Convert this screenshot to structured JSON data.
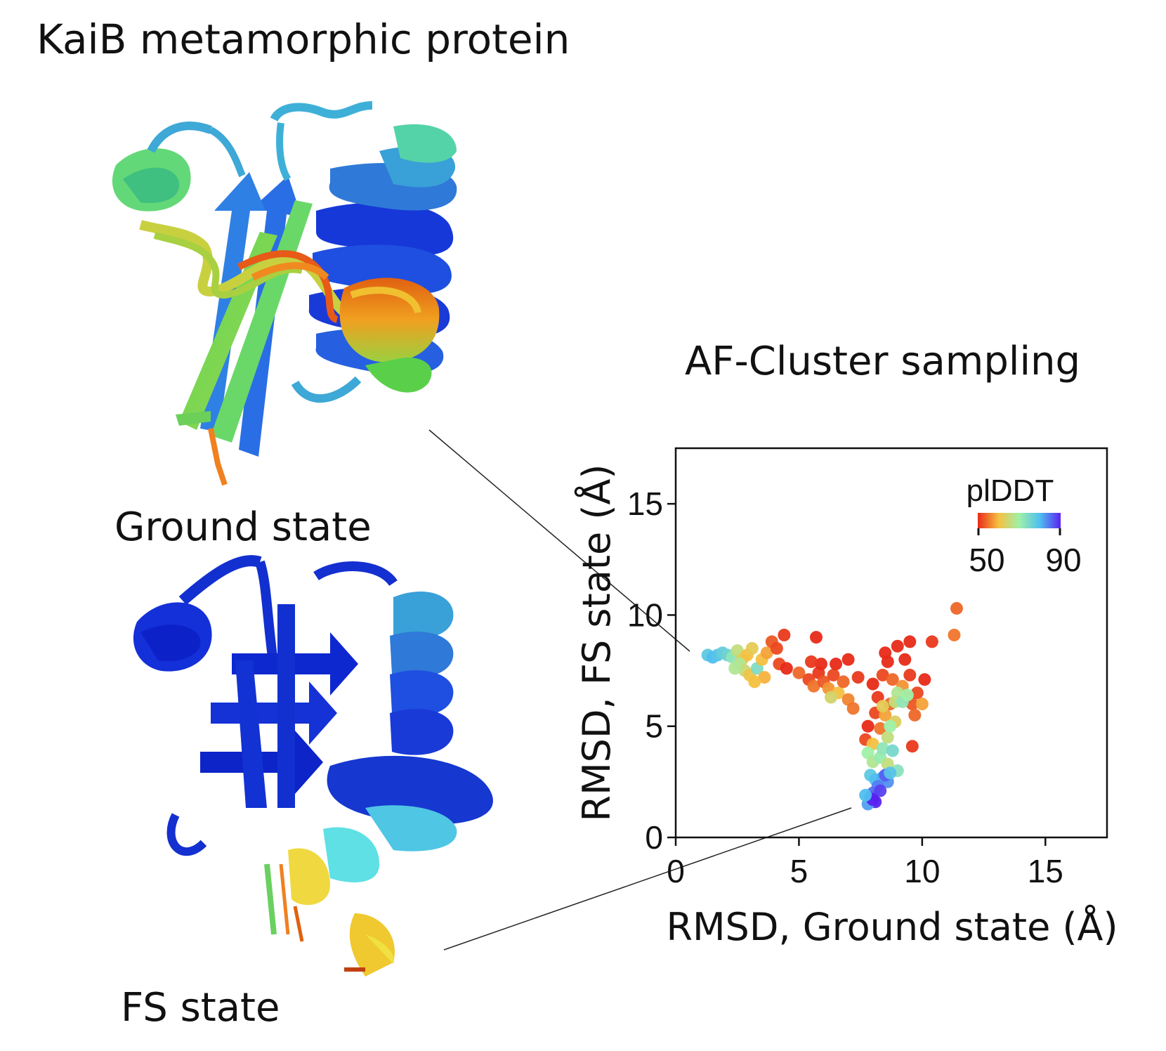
{
  "figure": {
    "title": "KaiB metamorphic protein",
    "structures": [
      {
        "label": "Ground state",
        "icon": "protein-cartoon-ground-state"
      },
      {
        "label": "FS state",
        "icon": "protein-cartoon-fs-state"
      }
    ]
  },
  "colors": {
    "blue": "#1030d8",
    "azure": "#2f6fe0",
    "cyan": "#49c6e8",
    "green": "#5ed45a",
    "yellow": "#f0d040",
    "orange": "#f08020",
    "red": "#e03018"
  },
  "chart_data": {
    "type": "scatter",
    "title": "AF-Cluster sampling",
    "xlabel": "RMSD, Ground state (Å)",
    "ylabel": "RMSD, FS state (Å)",
    "xlim": [
      0,
      17.5
    ],
    "ylim": [
      0,
      17.5
    ],
    "xticks": [
      0,
      5,
      10,
      15
    ],
    "yticks": [
      0,
      5,
      10,
      15
    ],
    "grid": false,
    "colorbar": {
      "title": "plDDT",
      "min": 50,
      "max": 90,
      "colormap": "rainbow (red to violet)",
      "placement": "top-right"
    },
    "points": [
      {
        "x": 1.3,
        "y": 8.2,
        "c": 78
      },
      {
        "x": 1.5,
        "y": 8.1,
        "c": 80
      },
      {
        "x": 1.7,
        "y": 8.2,
        "c": 79
      },
      {
        "x": 1.9,
        "y": 8.3,
        "c": 77
      },
      {
        "x": 2.1,
        "y": 8.2,
        "c": 76
      },
      {
        "x": 2.3,
        "y": 8.1,
        "c": 72
      },
      {
        "x": 2.5,
        "y": 8.4,
        "c": 66
      },
      {
        "x": 2.7,
        "y": 8.0,
        "c": 63
      },
      {
        "x": 2.9,
        "y": 8.2,
        "c": 60
      },
      {
        "x": 3.1,
        "y": 8.5,
        "c": 62
      },
      {
        "x": 2.6,
        "y": 7.8,
        "c": 68
      },
      {
        "x": 2.8,
        "y": 7.5,
        "c": 65
      },
      {
        "x": 3.0,
        "y": 7.3,
        "c": 61
      },
      {
        "x": 3.3,
        "y": 7.6,
        "c": 74
      },
      {
        "x": 3.5,
        "y": 8.0,
        "c": 60
      },
      {
        "x": 3.7,
        "y": 8.3,
        "c": 58
      },
      {
        "x": 3.9,
        "y": 8.8,
        "c": 53
      },
      {
        "x": 3.6,
        "y": 7.2,
        "c": 59
      },
      {
        "x": 3.2,
        "y": 7.0,
        "c": 60
      },
      {
        "x": 2.4,
        "y": 7.6,
        "c": 68
      },
      {
        "x": 4.2,
        "y": 7.8,
        "c": 52
      },
      {
        "x": 4.5,
        "y": 7.6,
        "c": 50
      },
      {
        "x": 4.1,
        "y": 8.5,
        "c": 52
      },
      {
        "x": 4.4,
        "y": 9.1,
        "c": 51
      },
      {
        "x": 5.0,
        "y": 7.4,
        "c": 54
      },
      {
        "x": 5.4,
        "y": 7.1,
        "c": 52
      },
      {
        "x": 5.6,
        "y": 6.8,
        "c": 55
      },
      {
        "x": 5.8,
        "y": 7.4,
        "c": 51
      },
      {
        "x": 6.0,
        "y": 7.0,
        "c": 53
      },
      {
        "x": 6.2,
        "y": 6.7,
        "c": 57
      },
      {
        "x": 5.9,
        "y": 7.8,
        "c": 50
      },
      {
        "x": 6.4,
        "y": 7.3,
        "c": 52
      },
      {
        "x": 6.6,
        "y": 6.5,
        "c": 60
      },
      {
        "x": 6.8,
        "y": 7.0,
        "c": 54
      },
      {
        "x": 7.0,
        "y": 6.2,
        "c": 56
      },
      {
        "x": 7.2,
        "y": 5.8,
        "c": 55
      },
      {
        "x": 7.0,
        "y": 8.0,
        "c": 50
      },
      {
        "x": 7.4,
        "y": 7.2,
        "c": 51
      },
      {
        "x": 5.5,
        "y": 7.9,
        "c": 51
      },
      {
        "x": 6.5,
        "y": 7.8,
        "c": 50
      },
      {
        "x": 5.7,
        "y": 9.0,
        "c": 49
      },
      {
        "x": 6.3,
        "y": 6.3,
        "c": 64
      },
      {
        "x": 7.8,
        "y": 5.0,
        "c": 50
      },
      {
        "x": 7.7,
        "y": 4.4,
        "c": 52
      },
      {
        "x": 8.0,
        "y": 4.2,
        "c": 60
      },
      {
        "x": 8.3,
        "y": 4.9,
        "c": 55
      },
      {
        "x": 8.1,
        "y": 5.6,
        "c": 52
      },
      {
        "x": 8.5,
        "y": 5.5,
        "c": 58
      },
      {
        "x": 8.7,
        "y": 6.0,
        "c": 54
      },
      {
        "x": 8.9,
        "y": 5.2,
        "c": 63
      },
      {
        "x": 8.6,
        "y": 4.5,
        "c": 66
      },
      {
        "x": 8.2,
        "y": 6.3,
        "c": 51
      },
      {
        "x": 8.0,
        "y": 6.9,
        "c": 50
      },
      {
        "x": 8.4,
        "y": 7.3,
        "c": 52
      },
      {
        "x": 8.8,
        "y": 7.1,
        "c": 54
      },
      {
        "x": 9.2,
        "y": 6.8,
        "c": 57
      },
      {
        "x": 9.4,
        "y": 6.3,
        "c": 55
      },
      {
        "x": 9.0,
        "y": 6.5,
        "c": 68
      },
      {
        "x": 9.6,
        "y": 6.0,
        "c": 53
      },
      {
        "x": 9.8,
        "y": 6.5,
        "c": 52
      },
      {
        "x": 9.5,
        "y": 7.3,
        "c": 51
      },
      {
        "x": 9.3,
        "y": 8.0,
        "c": 50
      },
      {
        "x": 8.5,
        "y": 8.3,
        "c": 49
      },
      {
        "x": 9.0,
        "y": 8.6,
        "c": 50
      },
      {
        "x": 9.5,
        "y": 8.8,
        "c": 49
      },
      {
        "x": 8.6,
        "y": 7.9,
        "c": 50
      },
      {
        "x": 10.1,
        "y": 7.1,
        "c": 50
      },
      {
        "x": 10.0,
        "y": 6.0,
        "c": 58
      },
      {
        "x": 9.7,
        "y": 5.5,
        "c": 54
      },
      {
        "x": 9.6,
        "y": 4.1,
        "c": 51
      },
      {
        "x": 8.9,
        "y": 6.1,
        "c": 66
      },
      {
        "x": 8.4,
        "y": 5.9,
        "c": 62
      },
      {
        "x": 8.7,
        "y": 5.0,
        "c": 70
      },
      {
        "x": 7.8,
        "y": 3.8,
        "c": 70
      },
      {
        "x": 8.0,
        "y": 3.4,
        "c": 68
      },
      {
        "x": 8.3,
        "y": 3.6,
        "c": 71
      },
      {
        "x": 8.6,
        "y": 3.3,
        "c": 66
      },
      {
        "x": 9.0,
        "y": 3.0,
        "c": 73
      },
      {
        "x": 8.4,
        "y": 4.0,
        "c": 72
      },
      {
        "x": 9.2,
        "y": 6.1,
        "c": 72
      },
      {
        "x": 9.4,
        "y": 6.4,
        "c": 70
      },
      {
        "x": 8.8,
        "y": 3.9,
        "c": 75
      },
      {
        "x": 7.9,
        "y": 2.8,
        "c": 78
      },
      {
        "x": 8.1,
        "y": 2.6,
        "c": 80
      },
      {
        "x": 8.4,
        "y": 2.7,
        "c": 81
      },
      {
        "x": 8.6,
        "y": 2.5,
        "c": 83
      },
      {
        "x": 8.2,
        "y": 2.3,
        "c": 84
      },
      {
        "x": 8.0,
        "y": 2.0,
        "c": 85
      },
      {
        "x": 7.9,
        "y": 1.8,
        "c": 87
      },
      {
        "x": 8.1,
        "y": 1.6,
        "c": 90
      },
      {
        "x": 8.3,
        "y": 2.1,
        "c": 88
      },
      {
        "x": 8.5,
        "y": 2.8,
        "c": 86
      },
      {
        "x": 7.8,
        "y": 1.5,
        "c": 82
      },
      {
        "x": 8.0,
        "y": 1.7,
        "c": 91
      },
      {
        "x": 8.7,
        "y": 2.9,
        "c": 79
      },
      {
        "x": 7.7,
        "y": 1.9,
        "c": 80
      },
      {
        "x": 11.4,
        "y": 10.3,
        "c": 54
      },
      {
        "x": 11.3,
        "y": 9.1,
        "c": 55
      },
      {
        "x": 10.4,
        "y": 8.8,
        "c": 51
      }
    ]
  }
}
